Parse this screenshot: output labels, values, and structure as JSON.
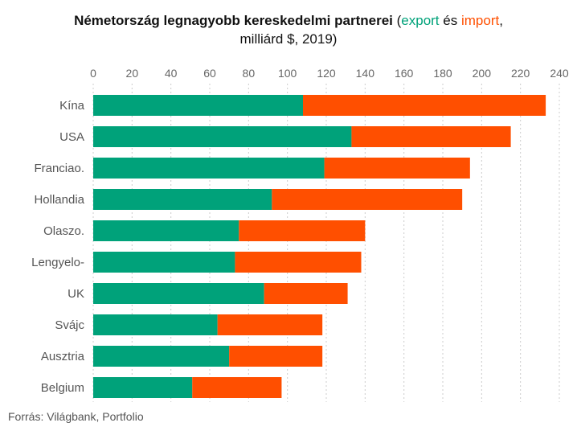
{
  "title": {
    "bold": "Németország legnagyobb kereskedelmi partnerei",
    "open": "(",
    "export_word": "export",
    "and_word": "és",
    "import_word": "import",
    "comma": ",",
    "line2": "milliárd $, 2019)"
  },
  "source": "Forrás: Világbank, Portfolio",
  "colors": {
    "export": "#00a27a",
    "import": "#ff4f00",
    "grid": "#cccccc"
  },
  "chart_data": {
    "type": "bar",
    "orientation": "horizontal",
    "stacked": true,
    "categories": [
      "Kína",
      "USA",
      "Franciao.",
      "Hollandia",
      "Olaszo.",
      "Lengyelo-",
      "UK",
      "Svájc",
      "Ausztria",
      "Belgium"
    ],
    "series": [
      {
        "name": "export",
        "values": [
          108,
          133,
          119,
          92,
          75,
          73,
          88,
          64,
          70,
          51
        ]
      },
      {
        "name": "import",
        "values": [
          125,
          82,
          75,
          98,
          65,
          65,
          43,
          54,
          48,
          46
        ]
      }
    ],
    "xlim": [
      0,
      240
    ],
    "xticks": [
      0,
      20,
      40,
      60,
      80,
      100,
      120,
      140,
      160,
      180,
      200,
      220,
      240
    ],
    "xaxis_position": "top",
    "grid": "vertical dashed"
  }
}
